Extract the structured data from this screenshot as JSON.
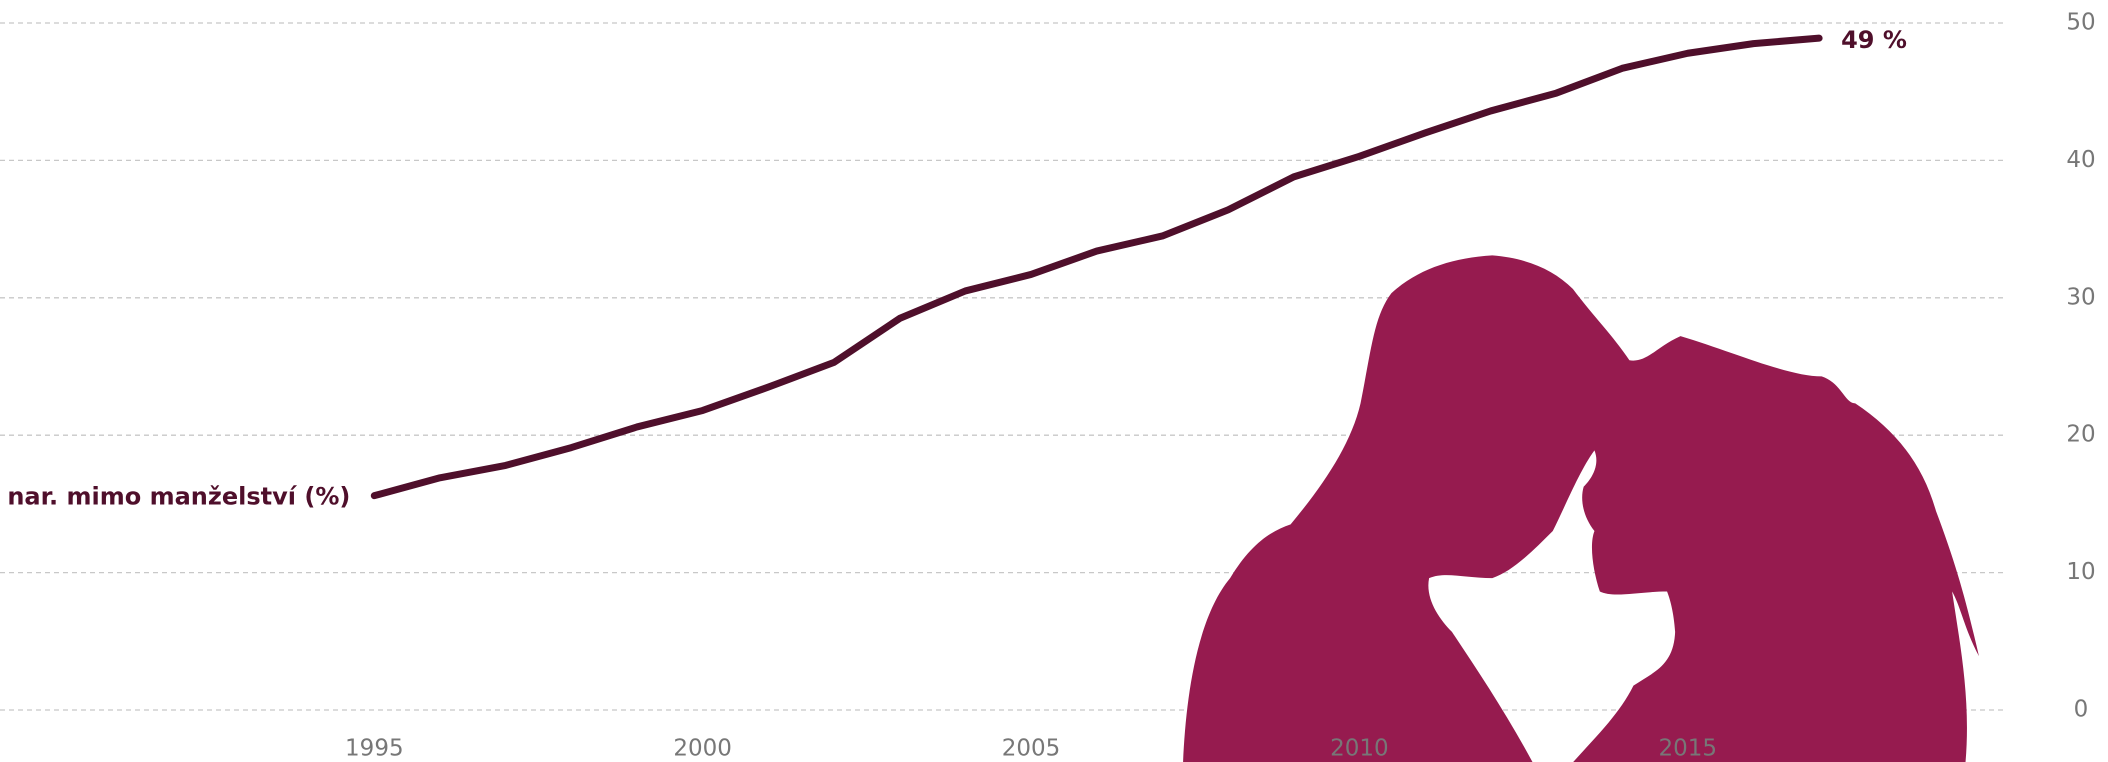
{
  "chart_data": {
    "type": "line",
    "x": [
      1995,
      1996,
      1997,
      1998,
      1999,
      2000,
      2001,
      2002,
      2003,
      2004,
      2005,
      2006,
      2007,
      2008,
      2009,
      2010,
      2011,
      2012,
      2013,
      2014,
      2015,
      2016,
      2017
    ],
    "series": [
      {
        "name": "nar. mimo manželství (%)",
        "color": "#4f0f2b",
        "values": [
          15.6,
          16.9,
          17.8,
          19.1,
          20.6,
          21.8,
          23.5,
          25.3,
          28.5,
          30.5,
          31.7,
          33.4,
          34.5,
          36.4,
          38.8,
          40.3,
          42.0,
          43.6,
          44.9,
          46.7,
          47.8,
          48.5,
          48.9
        ],
        "value_labels": [
          null,
          null,
          null,
          null,
          null,
          null,
          null,
          null,
          null,
          null,
          null,
          null,
          null,
          null,
          null,
          null,
          null,
          null,
          null,
          null,
          null,
          null,
          "49 %"
        ]
      }
    ],
    "xlim": [
      1989.3,
      2019.8
    ],
    "xticks": [
      1995,
      2000,
      2005,
      2010,
      2015
    ],
    "ylim": [
      0,
      50
    ],
    "yticks": [
      0,
      10,
      20,
      30,
      40,
      50
    ],
    "grid": true,
    "y_axis_side": "right"
  }
}
